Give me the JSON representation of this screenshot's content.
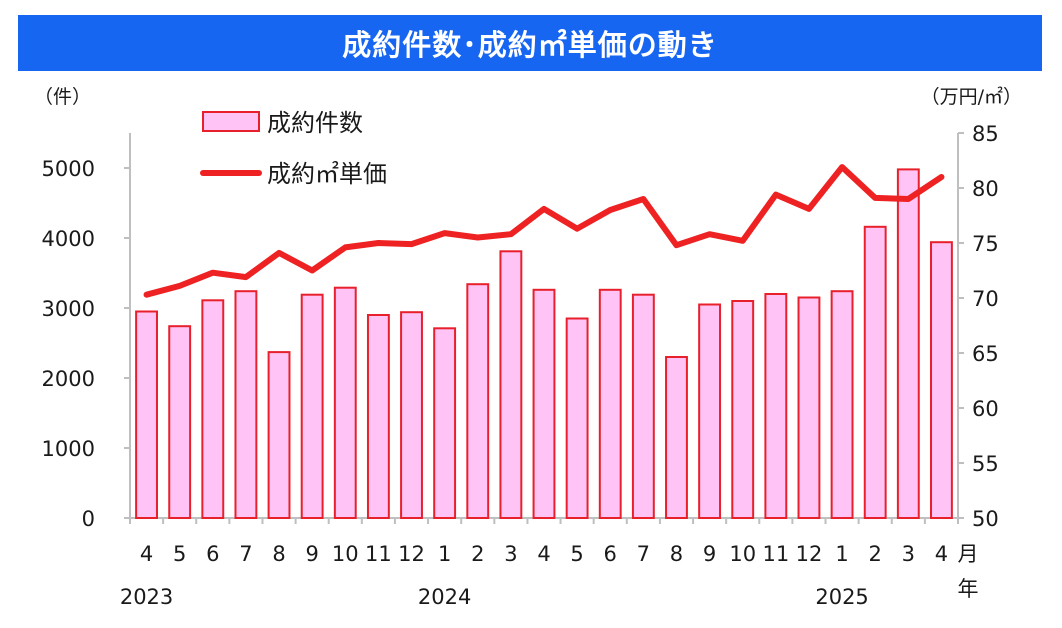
{
  "title": "成約件数･成約㎡単価の動き",
  "chart_data": {
    "type": "bar+line",
    "categories": [
      "4",
      "5",
      "6",
      "7",
      "8",
      "9",
      "10",
      "11",
      "12",
      "1",
      "2",
      "3",
      "4",
      "5",
      "6",
      "7",
      "8",
      "9",
      "10",
      "11",
      "12",
      "1",
      "2",
      "3",
      "4"
    ],
    "years": [
      {
        "label": "2023",
        "index": 0
      },
      {
        "label": "2024",
        "index": 9
      },
      {
        "label": "2025",
        "index": 21
      }
    ],
    "series": [
      {
        "name": "成約件数",
        "type": "bar",
        "axis": "left",
        "values": [
          2950,
          2740,
          3110,
          3240,
          2370,
          3190,
          3290,
          2900,
          2940,
          2710,
          3340,
          3810,
          3260,
          2850,
          3260,
          3190,
          2300,
          3050,
          3100,
          3200,
          3150,
          3240,
          4160,
          4980,
          3940
        ]
      },
      {
        "name": "成約㎡単価",
        "type": "line",
        "axis": "right",
        "values": [
          70.3,
          71.1,
          72.3,
          71.9,
          74.1,
          72.5,
          74.6,
          75.0,
          74.9,
          75.9,
          75.5,
          75.8,
          78.1,
          76.3,
          78.0,
          79.0,
          74.8,
          75.8,
          75.2,
          79.4,
          78.1,
          81.9,
          79.1,
          79.0,
          81.0
        ]
      }
    ],
    "left_axis": {
      "unit": "（件）",
      "ylim": [
        0,
        5500
      ],
      "ticks": [
        0,
        1000,
        2000,
        3000,
        4000,
        5000
      ]
    },
    "right_axis": {
      "unit": "（万円/㎡）",
      "ylim": [
        50,
        85
      ],
      "ticks": [
        50,
        55,
        60,
        65,
        70,
        75,
        80,
        85
      ]
    },
    "x_unit_month": "月",
    "x_unit_year": "年",
    "legend_position": "top-left",
    "grid": false
  },
  "colors": {
    "title_bg": "#1766f2",
    "bar_fill": "#ffc4f5",
    "bar_stroke": "#e8202b",
    "line": "#ee2222",
    "axis": "#bfbfbf"
  }
}
